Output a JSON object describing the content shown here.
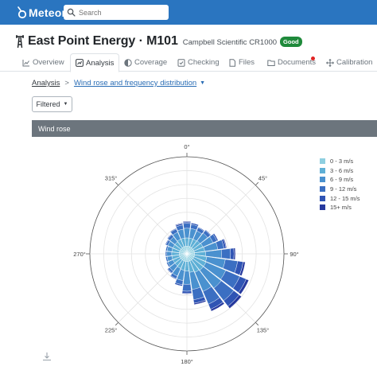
{
  "app": {
    "name": "Meteor"
  },
  "search": {
    "placeholder": "Search"
  },
  "header": {
    "title": "East Point Energy · M101",
    "logger": "Campbell Scientific CR1000",
    "status_badge": "Good"
  },
  "tabs": [
    {
      "label": "Overview",
      "icon": "line-chart-icon"
    },
    {
      "label": "Analysis",
      "icon": "chart-icon",
      "active": true
    },
    {
      "label": "Coverage",
      "icon": "half-circle-icon"
    },
    {
      "label": "Checking",
      "icon": "checklist-icon"
    },
    {
      "label": "Files",
      "icon": "file-icon"
    },
    {
      "label": "Documents",
      "icon": "folder-icon",
      "notification": true
    },
    {
      "label": "Calibration",
      "icon": "move-icon"
    }
  ],
  "breadcrumb": {
    "root": "Analysis",
    "separator": ">",
    "current": "Wind rose and frequency distribution"
  },
  "filter": {
    "label": "Filtered"
  },
  "panel": {
    "title": "Wind rose"
  },
  "chart_data": {
    "type": "barpolar",
    "direction_labels": [
      "0°",
      "45°",
      "90°",
      "135°",
      "180°",
      "225°",
      "270°",
      "315°"
    ],
    "directions_deg": [
      0,
      15,
      30,
      45,
      60,
      75,
      90,
      105,
      120,
      135,
      150,
      165,
      180,
      195,
      210,
      225,
      240,
      255,
      270,
      285,
      300,
      315,
      330,
      345
    ],
    "series": [
      {
        "name": "0 - 3 m/s",
        "color": "#8ecfe0",
        "values": [
          1.1,
          1.1,
          1.1,
          1.1,
          1.1,
          1.1,
          1.1,
          1.1,
          1.1,
          1.1,
          1.1,
          1.1,
          1.1,
          1.1,
          1.1,
          1.1,
          1.1,
          1.1,
          1.1,
          1.1,
          1.1,
          1.1,
          1.1,
          1.1
        ]
      },
      {
        "name": "3 - 6 m/s",
        "color": "#5fb0d6",
        "values": [
          1.2,
          1.2,
          1.2,
          1.3,
          1.4,
          1.5,
          1.6,
          1.8,
          1.9,
          1.9,
          1.8,
          1.6,
          1.4,
          1.3,
          1.2,
          1.1,
          1.1,
          1.1,
          1.1,
          1.1,
          1.1,
          1.1,
          1.2,
          1.2
        ]
      },
      {
        "name": "6 - 9 m/s",
        "color": "#4a91cf",
        "values": [
          1.4,
          1.4,
          1.3,
          1.4,
          1.6,
          1.9,
          2.3,
          2.7,
          3.1,
          3.3,
          3.0,
          2.5,
          1.9,
          1.5,
          1.2,
          1.0,
          0.8,
          0.7,
          0.7,
          0.7,
          0.8,
          0.9,
          1.1,
          1.3
        ]
      },
      {
        "name": "9 - 12 m/s",
        "color": "#3b6fc2",
        "values": [
          0.7,
          0.6,
          0.5,
          0.5,
          0.6,
          0.9,
          1.3,
          1.8,
          2.2,
          2.3,
          2.0,
          1.5,
          1.0,
          0.6,
          0.4,
          0.3,
          0.2,
          0.2,
          0.2,
          0.2,
          0.3,
          0.4,
          0.5,
          0.6
        ]
      },
      {
        "name": "12 - 15 m/s",
        "color": "#2f54b4",
        "values": [
          0.2,
          0.2,
          0.1,
          0.1,
          0.2,
          0.3,
          0.5,
          0.8,
          1.0,
          1.0,
          0.8,
          0.5,
          0.3,
          0.2,
          0.1,
          0.1,
          0.0,
          0.0,
          0.0,
          0.0,
          0.1,
          0.1,
          0.1,
          0.2
        ]
      },
      {
        "name": "15+ m/s",
        "color": "#26399e",
        "values": [
          0.1,
          0.0,
          0.0,
          0.0,
          0.0,
          0.1,
          0.2,
          0.3,
          0.4,
          0.4,
          0.3,
          0.2,
          0.1,
          0.0,
          0.0,
          0.0,
          0.0,
          0.0,
          0.0,
          0.0,
          0.0,
          0.0,
          0.0,
          0.1
        ]
      }
    ],
    "radial_range": [
      0,
      14
    ],
    "grid": true,
    "legend": "right"
  }
}
